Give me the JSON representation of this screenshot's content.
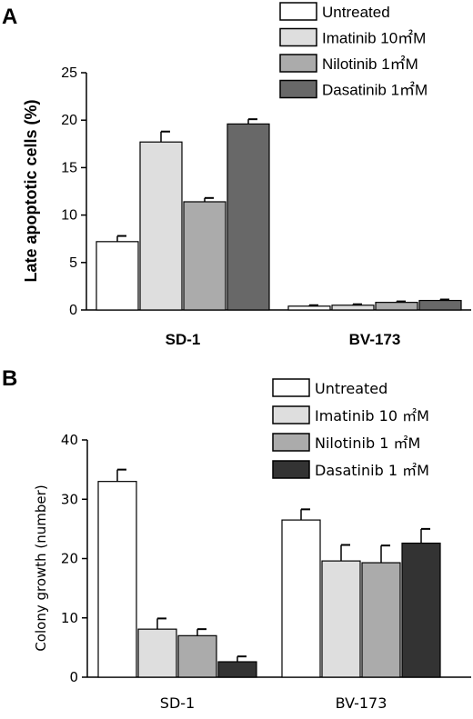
{
  "chart_data": [
    {
      "panel": "A",
      "type": "bar",
      "ylabel": "Late apoptotic cells (%)",
      "xlabel": "",
      "ylim": [
        0,
        25
      ],
      "yticks": [
        0,
        5,
        10,
        15,
        20,
        25
      ],
      "categories": [
        "SD-1",
        "BV-173"
      ],
      "legend_position": "top-right",
      "series": [
        {
          "name": "Untreated",
          "color": "#ffffff",
          "values": [
            7.2,
            0.4
          ],
          "errors": [
            0.6,
            0.1
          ]
        },
        {
          "name": "Imatinib 10㎡M",
          "color": "#dedede",
          "values": [
            17.7,
            0.5
          ],
          "errors": [
            1.1,
            0.1
          ]
        },
        {
          "name": "Nilotinib 1㎡M",
          "color": "#ababab",
          "values": [
            11.4,
            0.8
          ],
          "errors": [
            0.4,
            0.1
          ]
        },
        {
          "name": "Dasatinib 1㎡M",
          "color": "#686868",
          "values": [
            19.6,
            1.0
          ],
          "errors": [
            0.5,
            0.1
          ]
        }
      ]
    },
    {
      "panel": "B",
      "type": "bar",
      "ylabel": "Colony growth (number)",
      "xlabel": "",
      "ylim": [
        0,
        40
      ],
      "yticks": [
        0,
        10,
        20,
        30,
        40
      ],
      "categories": [
        "SD-1",
        "BV-173"
      ],
      "legend_position": "top-right",
      "series": [
        {
          "name": "Untreated",
          "color": "#ffffff",
          "values": [
            33.0,
            26.5
          ],
          "errors": [
            2.0,
            1.8
          ]
        },
        {
          "name": "Imatinib 10 ㎡M",
          "color": "#dedede",
          "values": [
            8.1,
            19.6
          ],
          "errors": [
            1.8,
            2.7
          ]
        },
        {
          "name": "Nilotinib 1 ㎡M",
          "color": "#ababab",
          "values": [
            7.0,
            19.3
          ],
          "errors": [
            1.1,
            2.9
          ]
        },
        {
          "name": "Dasatinib 1 ㎡M",
          "color": "#333333",
          "values": [
            2.6,
            22.6
          ],
          "errors": [
            0.9,
            2.4
          ]
        }
      ]
    }
  ]
}
